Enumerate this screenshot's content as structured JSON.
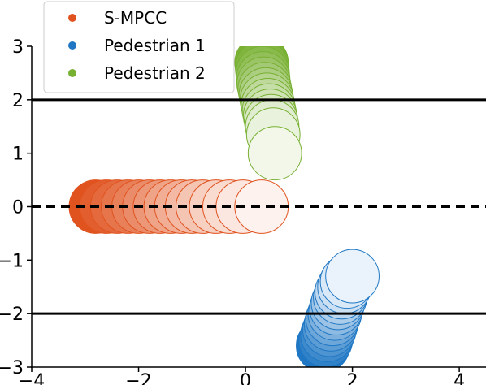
{
  "chart_data": {
    "type": "scatter",
    "title": "",
    "xlabel": "",
    "ylabel": "",
    "xlim": [
      -4,
      4.5
    ],
    "ylim": [
      -3,
      3
    ],
    "x_ticks": [
      -4,
      -2,
      0,
      2,
      4
    ],
    "y_ticks": [
      -3,
      -2,
      -1,
      0,
      1,
      2,
      3
    ],
    "x_tick_labels": [
      "−4",
      "−2",
      "0",
      "2",
      "4"
    ],
    "y_tick_labels": [
      "−3",
      "−2",
      "−1",
      "0",
      "1",
      "2",
      "3"
    ],
    "grid": false,
    "legend_position": "top-left",
    "marker_radius_data": 0.5,
    "lane_boundaries": [
      {
        "y": 2,
        "style": "solid"
      },
      {
        "y": 0,
        "style": "dashed"
      },
      {
        "y": -2,
        "style": "solid"
      }
    ],
    "series": [
      {
        "name": "S-MPCC",
        "color_dark": "#e0531f",
        "color_light": "#fdf2ee",
        "points": [
          [
            -2.8,
            0.0
          ],
          [
            -2.6,
            0.0
          ],
          [
            -2.4,
            0.0
          ],
          [
            -2.2,
            0.0
          ],
          [
            -2.0,
            0.0
          ],
          [
            -1.8,
            0.0
          ],
          [
            -1.6,
            0.0
          ],
          [
            -1.4,
            0.0
          ],
          [
            -1.2,
            0.0
          ],
          [
            -1.0,
            0.0
          ],
          [
            -0.8,
            0.0
          ],
          [
            -0.55,
            0.0
          ],
          [
            -0.3,
            0.0
          ],
          [
            -0.05,
            0.0
          ],
          [
            0.3,
            0.0
          ]
        ]
      },
      {
        "name": "Pedestrian 1",
        "color_dark": "#1f77c4",
        "color_light": "#eaf3fb",
        "points": [
          [
            1.45,
            -2.6
          ],
          [
            1.5,
            -2.5
          ],
          [
            1.53,
            -2.4
          ],
          [
            1.57,
            -2.3
          ],
          [
            1.6,
            -2.2
          ],
          [
            1.63,
            -2.1
          ],
          [
            1.67,
            -2.0
          ],
          [
            1.7,
            -1.9
          ],
          [
            1.73,
            -1.8
          ],
          [
            1.77,
            -1.7
          ],
          [
            1.8,
            -1.6
          ],
          [
            1.85,
            -1.5
          ],
          [
            1.9,
            -1.4
          ],
          [
            2.0,
            -1.3
          ]
        ]
      },
      {
        "name": "Pedestrian 2",
        "color_dark": "#78b032",
        "color_light": "#f2f7ea",
        "points": [
          [
            0.3,
            2.7
          ],
          [
            0.31,
            2.6
          ],
          [
            0.32,
            2.5
          ],
          [
            0.33,
            2.4
          ],
          [
            0.34,
            2.3
          ],
          [
            0.36,
            2.2
          ],
          [
            0.38,
            2.1
          ],
          [
            0.4,
            2.0
          ],
          [
            0.42,
            1.9
          ],
          [
            0.44,
            1.8
          ],
          [
            0.46,
            1.7
          ],
          [
            0.48,
            1.6
          ],
          [
            0.5,
            1.5
          ],
          [
            0.52,
            1.35
          ],
          [
            0.55,
            1.0
          ]
        ]
      }
    ]
  }
}
